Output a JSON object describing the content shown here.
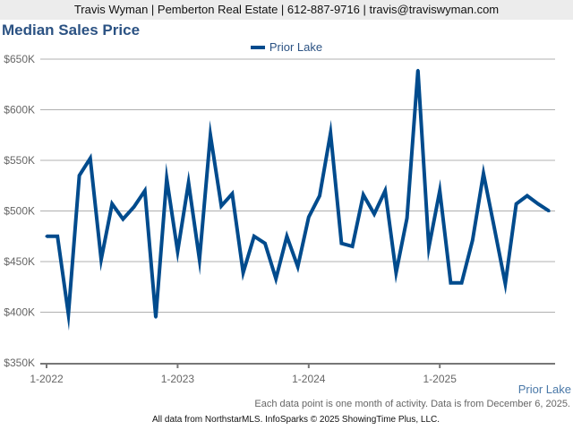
{
  "header": {
    "contact": "Travis Wyman | Pemberton Real Estate | 612-887-9716 | travis@traviswyman.com"
  },
  "area_label": "Prior Lake",
  "note": "Each data point is one month of activity. Data is from December 6, 2025.",
  "footer": "All data from NorthstarMLS. InfoSparks © 2025 ShowingTime Plus, LLC.",
  "colors": {
    "series": "#004b8d",
    "title": "#2b5283"
  },
  "chart_data": {
    "type": "line",
    "title": "Median Sales Price",
    "xlabel": "",
    "ylabel": "",
    "ylim": [
      350000,
      650000
    ],
    "y_ticks": [
      350000,
      400000,
      450000,
      500000,
      550000,
      600000,
      650000
    ],
    "y_tick_labels": [
      "$350K",
      "$400K",
      "$450K",
      "$500K",
      "$550K",
      "$600K",
      "$650K"
    ],
    "x_start": "1-2022",
    "x_tick_labels": [
      {
        "index": 0,
        "label": "1-2022"
      },
      {
        "index": 12,
        "label": "1-2023"
      },
      {
        "index": 24,
        "label": "1-2024"
      },
      {
        "index": 36,
        "label": "1-2025"
      }
    ],
    "grid": true,
    "legend_position": "top-center",
    "series": [
      {
        "name": "Prior Lake",
        "values": [
          475000,
          475000,
          398000,
          535000,
          552000,
          452000,
          507000,
          492000,
          504000,
          520000,
          395000,
          532000,
          460000,
          528000,
          452000,
          575000,
          505000,
          517000,
          439000,
          475000,
          468000,
          433000,
          475000,
          445000,
          494000,
          515000,
          577000,
          468000,
          465000,
          516000,
          497000,
          520000,
          439000,
          493000,
          639000,
          464000,
          520000,
          429000,
          429000,
          471000,
          537000,
          483000,
          428000,
          507000,
          515000,
          507000,
          500000
        ]
      }
    ]
  }
}
